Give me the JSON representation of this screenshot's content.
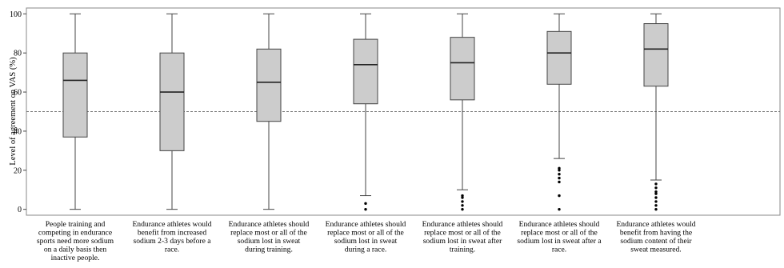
{
  "chart_data": {
    "type": "box",
    "ylabel": "Level of agreement on VAS (%)",
    "ylim": [
      -3,
      103
    ],
    "yticks": [
      0,
      20,
      40,
      60,
      80,
      100
    ],
    "reference_line": 50,
    "grid": false,
    "categories": [
      [
        "People training and",
        "competing in endurance",
        "sports need more sodium",
        "on a daily basis then",
        "inactive people."
      ],
      [
        "Endurance athletes would",
        "benefit from increased",
        "sodium 2-3 days before a",
        "race."
      ],
      [
        "Endurance athletes should",
        "replace most or all of the",
        "sodium lost in sweat",
        "during training."
      ],
      [
        "Endurance athletes should",
        "replace most or all of the",
        "sodium lost in sweat",
        "during a race."
      ],
      [
        "Endurance athletes should",
        "replace most or all of the",
        "sodium lost in sweat after",
        "training."
      ],
      [
        "Endurance athletes should",
        "replace most or all of the",
        "sodium lost in sweat after a",
        "race."
      ],
      [
        "Endurance athletes would",
        "benefit from having the",
        "sodium content of their",
        "sweat measured."
      ]
    ],
    "boxes": [
      {
        "min": 0,
        "q1": 37,
        "median": 66,
        "q3": 80,
        "max": 100,
        "outliers": []
      },
      {
        "min": 0,
        "q1": 30,
        "median": 60,
        "q3": 80,
        "max": 100,
        "outliers": []
      },
      {
        "min": 0,
        "q1": 45,
        "median": 65,
        "q3": 82,
        "max": 100,
        "outliers": []
      },
      {
        "min": 7,
        "q1": 54,
        "median": 74,
        "q3": 87,
        "max": 100,
        "outliers": [
          0,
          3
        ]
      },
      {
        "min": 10,
        "q1": 56,
        "median": 75,
        "q3": 88,
        "max": 100,
        "outliers": [
          0,
          2,
          4,
          6,
          7
        ]
      },
      {
        "min": 26,
        "q1": 64,
        "median": 80,
        "q3": 91,
        "max": 100,
        "outliers": [
          0,
          7,
          14,
          16,
          18,
          20,
          21
        ]
      },
      {
        "min": 15,
        "q1": 63,
        "median": 82,
        "q3": 95,
        "max": 100,
        "outliers": [
          0,
          2,
          4,
          6,
          8,
          9,
          11,
          13
        ]
      }
    ],
    "colors": {
      "box_fill": "#cccccc",
      "box_stroke": "#444444",
      "outlier": "#000000"
    }
  }
}
